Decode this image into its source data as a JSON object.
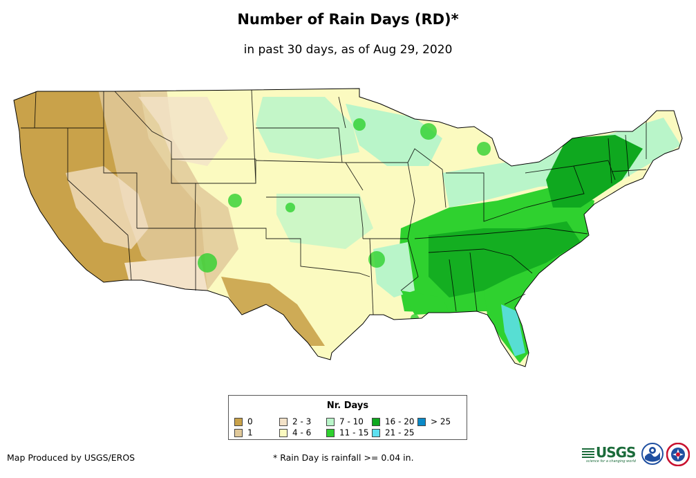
{
  "header": {
    "title": "Number of Rain Days (RD)*",
    "subtitle": "in past 30 days, as of Aug 29, 2020"
  },
  "legend": {
    "title": "Nr. Days",
    "items": [
      {
        "label": "0",
        "color": "#c9a24a"
      },
      {
        "label": "1",
        "color": "#e0c99a"
      },
      {
        "label": "2 - 3",
        "color": "#f3e2c8"
      },
      {
        "label": "4 - 6",
        "color": "#fbfac0"
      },
      {
        "label": "7 - 10",
        "color": "#b9f5c9"
      },
      {
        "label": "11 - 15",
        "color": "#2fd12f"
      },
      {
        "label": "16 - 20",
        "color": "#0fa81f"
      },
      {
        "label": "21 - 25",
        "color": "#5ee0f0"
      },
      {
        "label": "> 25",
        "color": "#0a8ac8"
      }
    ]
  },
  "footer": {
    "credit": "Map Produced by USGS/EROS",
    "footnote": "* Rain Day is rainfall >= 0.04 in.",
    "usgs_logo": "USGS",
    "usgs_tagline": "science for a changing world",
    "noaa_logo": "NOAA",
    "nws_logo": "NWS"
  },
  "colors": {
    "border": "#000000",
    "background": "#ffffff"
  },
  "icons": [
    "usgs-logo-icon",
    "noaa-logo-icon",
    "nws-logo-icon"
  ]
}
